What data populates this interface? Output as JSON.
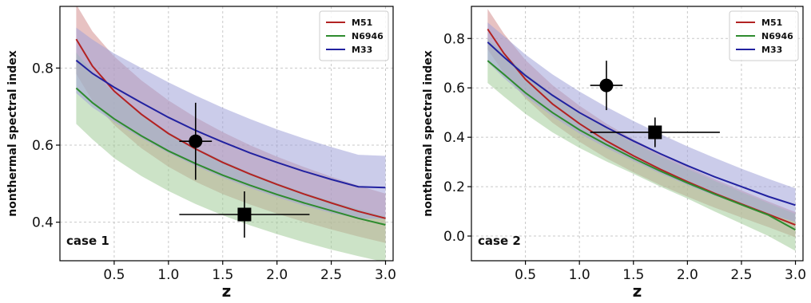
{
  "chart_data": [
    {
      "type": "line",
      "annotation": "case 1",
      "xlabel": "z",
      "ylabel": "nonthermal spectral index",
      "xlim": [
        0.0,
        3.07
      ],
      "ylim": [
        0.3,
        0.96
      ],
      "xticks": [
        0.5,
        1.0,
        1.5,
        2.0,
        2.5,
        3.0
      ],
      "xtick_labels": [
        "0.5",
        "1.0",
        "1.5",
        "2.0",
        "2.5",
        "3.0"
      ],
      "yticks": [
        0.4,
        0.6,
        0.8
      ],
      "ytick_labels": [
        "0.4",
        "0.6",
        "0.8"
      ],
      "grid": true,
      "legend_position": "top-right",
      "x": [
        0.15,
        0.3,
        0.5,
        0.75,
        1.0,
        1.25,
        1.5,
        1.75,
        2.0,
        2.25,
        2.5,
        2.75,
        3.0
      ],
      "series": [
        {
          "name": "M51",
          "color": "#b22222",
          "fill": "#d4908f",
          "values": [
            0.875,
            0.805,
            0.74,
            0.68,
            0.63,
            0.59,
            0.555,
            0.525,
            0.498,
            0.473,
            0.45,
            0.428,
            0.41
          ],
          "upper": [
            0.965,
            0.895,
            0.83,
            0.768,
            0.716,
            0.672,
            0.634,
            0.6,
            0.57,
            0.543,
            0.518,
            0.495,
            0.474
          ],
          "lower": [
            0.785,
            0.715,
            0.652,
            0.592,
            0.544,
            0.505,
            0.473,
            0.446,
            0.422,
            0.401,
            0.381,
            0.363,
            0.346
          ]
        },
        {
          "name": "N6946",
          "color": "#2e8b2e",
          "fill": "#a3cc99",
          "values": [
            0.748,
            0.71,
            0.668,
            0.624,
            0.585,
            0.552,
            0.522,
            0.496,
            0.472,
            0.45,
            0.43,
            0.41,
            0.393
          ],
          "upper": [
            0.84,
            0.79,
            0.735,
            0.68,
            0.634,
            0.594,
            0.56,
            0.529,
            0.502,
            0.477,
            0.455,
            0.434,
            0.415
          ],
          "lower": [
            0.655,
            0.615,
            0.566,
            0.52,
            0.481,
            0.447,
            0.418,
            0.392,
            0.369,
            0.348,
            0.329,
            0.312,
            0.296
          ]
        },
        {
          "name": "M33",
          "color": "#2222a0",
          "fill": "#a0a3d9",
          "values": [
            0.82,
            0.786,
            0.75,
            0.71,
            0.672,
            0.638,
            0.608,
            0.58,
            0.555,
            0.532,
            0.511,
            0.492,
            0.49
          ],
          "upper": [
            0.905,
            0.874,
            0.838,
            0.8,
            0.763,
            0.729,
            0.697,
            0.668,
            0.641,
            0.617,
            0.595,
            0.575,
            0.572
          ],
          "lower": [
            0.735,
            0.698,
            0.66,
            0.618,
            0.58,
            0.546,
            0.516,
            0.489,
            0.465,
            0.443,
            0.424,
            0.41,
            0.408
          ]
        }
      ],
      "points": [
        {
          "marker": "circle",
          "x": 1.25,
          "y": 0.61,
          "xerr": 0.15,
          "yerr": 0.1
        },
        {
          "marker": "square",
          "x": 1.7,
          "y": 0.42,
          "xerr": 0.6,
          "yerr": 0.06
        }
      ]
    },
    {
      "type": "line",
      "annotation": "case 2",
      "xlabel": "z",
      "ylabel": "nonthermal spectral index",
      "xlim": [
        0.0,
        3.07
      ],
      "ylim": [
        -0.1,
        0.93
      ],
      "xticks": [
        0.5,
        1.0,
        1.5,
        2.0,
        2.5,
        3.0
      ],
      "xtick_labels": [
        "0.5",
        "1.0",
        "1.5",
        "2.0",
        "2.5",
        "3.0"
      ],
      "yticks": [
        0.0,
        0.2,
        0.4,
        0.6,
        0.8
      ],
      "ytick_labels": [
        "0.0",
        "0.2",
        "0.4",
        "0.6",
        "0.8"
      ],
      "grid": true,
      "legend_position": "top-right",
      "x": [
        0.15,
        0.3,
        0.5,
        0.75,
        1.0,
        1.25,
        1.5,
        1.75,
        2.0,
        2.25,
        2.5,
        2.75,
        3.0
      ],
      "series": [
        {
          "name": "M51",
          "color": "#b22222",
          "fill": "#d4908f",
          "values": [
            0.838,
            0.74,
            0.635,
            0.535,
            0.455,
            0.385,
            0.325,
            0.27,
            0.22,
            0.173,
            0.13,
            0.088,
            0.045
          ],
          "upper": [
            0.92,
            0.82,
            0.713,
            0.611,
            0.528,
            0.455,
            0.392,
            0.334,
            0.281,
            0.231,
            0.185,
            0.14,
            0.097
          ],
          "lower": [
            0.756,
            0.66,
            0.557,
            0.459,
            0.382,
            0.315,
            0.258,
            0.206,
            0.159,
            0.115,
            0.075,
            0.036,
            -0.005
          ]
        },
        {
          "name": "N6946",
          "color": "#2e8b2e",
          "fill": "#a3cc99",
          "values": [
            0.71,
            0.655,
            0.58,
            0.5,
            0.43,
            0.37,
            0.315,
            0.263,
            0.215,
            0.17,
            0.127,
            0.085,
            0.025
          ],
          "upper": [
            0.8,
            0.74,
            0.66,
            0.575,
            0.5,
            0.436,
            0.378,
            0.323,
            0.272,
            0.224,
            0.178,
            0.133,
            0.09
          ],
          "lower": [
            0.62,
            0.565,
            0.495,
            0.42,
            0.357,
            0.302,
            0.252,
            0.2,
            0.152,
            0.1,
            0.05,
            0.0,
            -0.06
          ]
        },
        {
          "name": "M33",
          "color": "#2222a0",
          "fill": "#a0a3d9",
          "values": [
            0.785,
            0.725,
            0.65,
            0.57,
            0.5,
            0.44,
            0.385,
            0.333,
            0.285,
            0.24,
            0.2,
            0.16,
            0.125
          ],
          "upper": [
            0.865,
            0.81,
            0.735,
            0.655,
            0.585,
            0.523,
            0.466,
            0.413,
            0.363,
            0.317,
            0.273,
            0.232,
            0.193
          ],
          "lower": [
            0.705,
            0.64,
            0.565,
            0.485,
            0.415,
            0.357,
            0.304,
            0.253,
            0.207,
            0.163,
            0.127,
            0.09,
            0.057
          ]
        }
      ],
      "points": [
        {
          "marker": "circle",
          "x": 1.25,
          "y": 0.61,
          "xerr": 0.15,
          "yerr": 0.1
        },
        {
          "marker": "square",
          "x": 1.7,
          "y": 0.42,
          "xerr": 0.6,
          "yerr": 0.06
        }
      ]
    }
  ]
}
